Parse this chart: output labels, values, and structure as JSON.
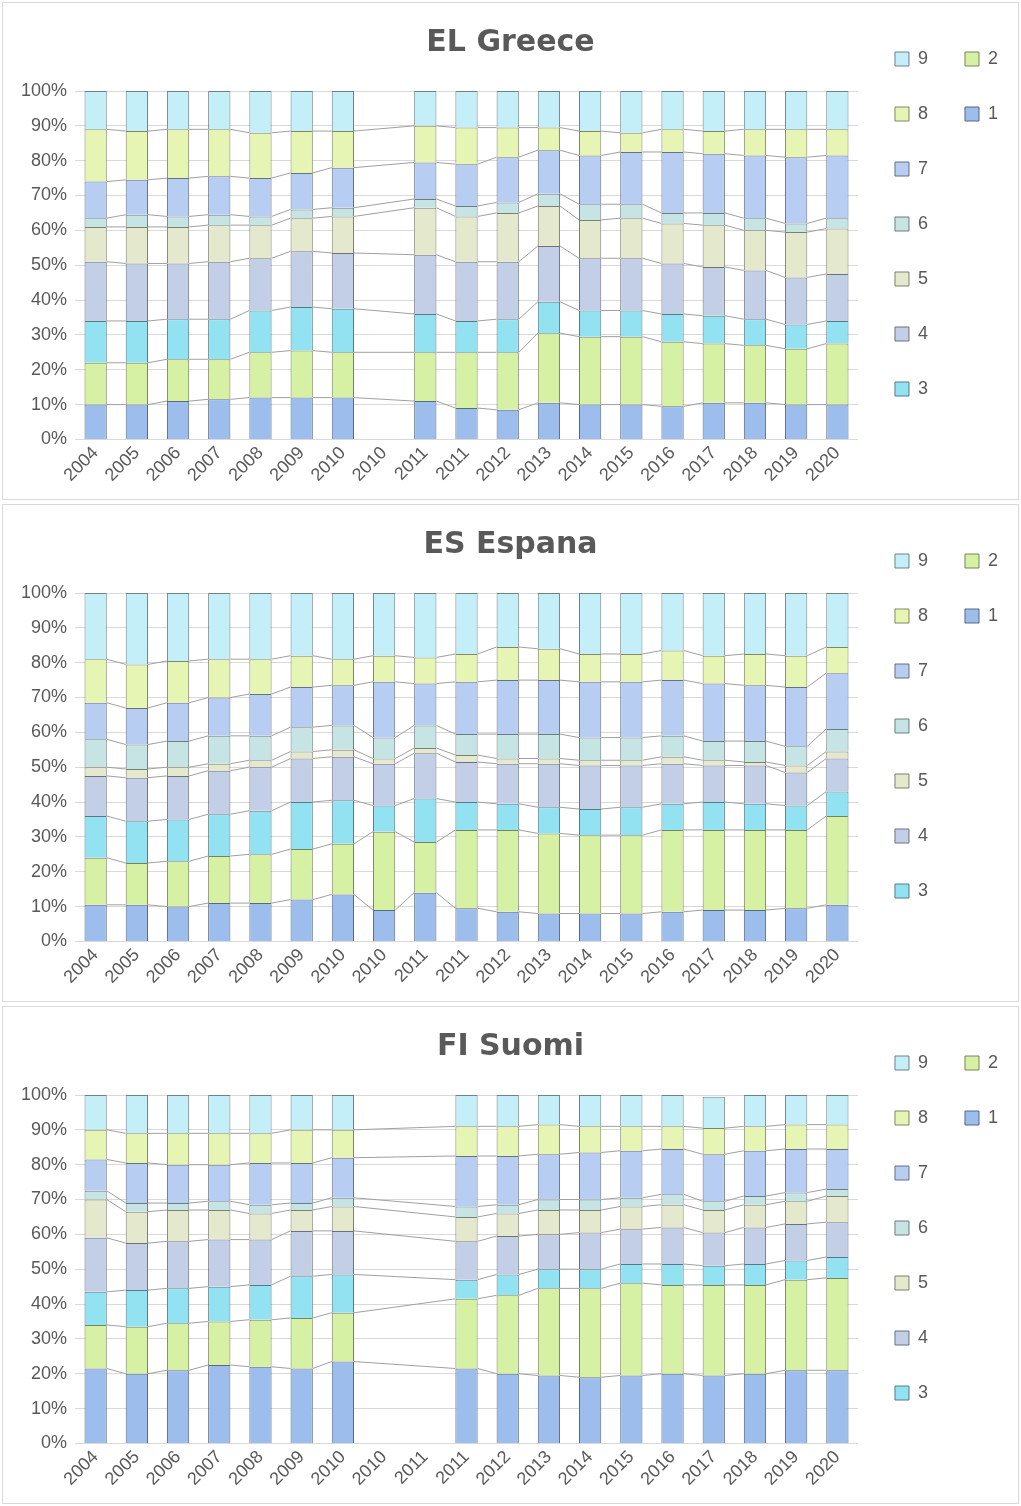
{
  "chart_data": [
    {
      "type": "bar",
      "title": "EL Greece",
      "stacked": true,
      "grid": "y",
      "legend": "right",
      "categories": [
        "2004",
        "2005",
        "2006",
        "2007",
        "2008",
        "2009",
        "2010",
        "2010",
        "2011",
        "2011",
        "2012",
        "2013",
        "2014",
        "2015",
        "2016",
        "2017",
        "2018",
        "2019",
        "2020"
      ],
      "ylim": [
        0,
        100
      ],
      "yticks": [
        {
          "value": 0,
          "label": "0%"
        },
        {
          "value": 10,
          "label": "10%"
        },
        {
          "value": 20,
          "label": "20%"
        },
        {
          "value": 30,
          "label": "30%"
        },
        {
          "value": 40,
          "label": "40%"
        },
        {
          "value": 50,
          "label": "50%"
        },
        {
          "value": 60,
          "label": "60%"
        },
        {
          "value": 70,
          "label": "70%"
        },
        {
          "value": 80,
          "label": "80%"
        },
        {
          "value": 90,
          "label": "90%"
        },
        {
          "value": 100,
          "label": "100%"
        }
      ],
      "series": [
        {
          "name": "1",
          "color": "#9dbdec",
          "values": [
            10,
            10,
            11,
            11.5,
            12,
            12,
            12,
            null,
            11,
            9,
            8.5,
            10.5,
            10,
            10,
            9.5,
            10.5,
            10.5,
            10,
            10
          ]
        },
        {
          "name": "2",
          "color": "#d6f0a4",
          "values": [
            12,
            12,
            12,
            11.5,
            13,
            13.5,
            13,
            null,
            14,
            16,
            16.5,
            20,
            19.5,
            19.5,
            18.5,
            17,
            16.5,
            16,
            17.5
          ]
        },
        {
          "name": "3",
          "color": "#93e2f2",
          "values": [
            12,
            12,
            11.5,
            11.5,
            12,
            12.5,
            12.5,
            null,
            11,
            9,
            9.5,
            9,
            7.5,
            7.5,
            8,
            8,
            7.5,
            7,
            6.5
          ]
        },
        {
          "name": "4",
          "color": "#c3cfe6",
          "values": [
            17,
            16.5,
            16,
            16.5,
            15,
            16,
            16,
            null,
            17,
            17,
            16.5,
            16,
            15,
            15,
            14.5,
            14,
            14,
            13.5,
            13.5
          ]
        },
        {
          "name": "5",
          "color": "#e4e8cc",
          "values": [
            10,
            10.5,
            10.5,
            10.5,
            9.5,
            9.5,
            10.5,
            null,
            13.5,
            13,
            14,
            11.5,
            11,
            11.5,
            11.5,
            12,
            11.5,
            13,
            13
          ]
        },
        {
          "name": "6",
          "color": "#c6e4e4",
          "values": [
            2.5,
            3.5,
            3,
            3,
            2.5,
            2.5,
            2.5,
            null,
            2.5,
            3,
            3,
            3.5,
            4.5,
            4,
            3,
            3.5,
            3.5,
            2.5,
            3
          ]
        },
        {
          "name": "7",
          "color": "#b7cdf2",
          "values": [
            10.5,
            10,
            11,
            11,
            11,
            10.5,
            11.5,
            null,
            10.5,
            12,
            13,
            12.5,
            14,
            15,
            17.5,
            17,
            18,
            19,
            18
          ]
        },
        {
          "name": "8",
          "color": "#e6f5b4",
          "values": [
            15,
            14,
            14,
            13.5,
            13,
            12,
            10.5,
            null,
            10.5,
            10.5,
            8.5,
            6.5,
            7,
            5.5,
            6.5,
            6.5,
            7.5,
            8,
            7.5
          ]
        },
        {
          "name": "9",
          "color": "#c4eef8",
          "values": [
            11,
            11.5,
            11,
            11,
            12,
            11.5,
            11.5,
            null,
            10,
            10.5,
            10.5,
            10.5,
            11.5,
            12,
            11,
            11.5,
            11,
            11,
            11
          ]
        }
      ]
    },
    {
      "type": "bar",
      "title": "ES Espana",
      "stacked": true,
      "grid": "y",
      "legend": "right",
      "categories": [
        "2004",
        "2005",
        "2006",
        "2007",
        "2008",
        "2009",
        "2010",
        "2010",
        "2011",
        "2011",
        "2012",
        "2013",
        "2014",
        "2015",
        "2016",
        "2017",
        "2018",
        "2019",
        "2020"
      ],
      "ylim": [
        0,
        100
      ],
      "yticks": [
        {
          "value": 0,
          "label": "0%"
        },
        {
          "value": 10,
          "label": "10%"
        },
        {
          "value": 20,
          "label": "20%"
        },
        {
          "value": 30,
          "label": "30%"
        },
        {
          "value": 40,
          "label": "40%"
        },
        {
          "value": 50,
          "label": "50%"
        },
        {
          "value": 60,
          "label": "60%"
        },
        {
          "value": 70,
          "label": "70%"
        },
        {
          "value": 80,
          "label": "80%"
        },
        {
          "value": 90,
          "label": "90%"
        },
        {
          "value": 100,
          "label": "100%"
        }
      ],
      "series": [
        {
          "name": "1",
          "color": "#9dbdec",
          "values": [
            10.5,
            10.5,
            10,
            11,
            11,
            12,
            13.5,
            9,
            14,
            9.5,
            8.5,
            8,
            8,
            8,
            8.5,
            9,
            9,
            9.5,
            10.5
          ]
        },
        {
          "name": "2",
          "color": "#d6f0a4",
          "values": [
            13.5,
            12,
            13,
            13.5,
            14,
            14.5,
            14.5,
            22.5,
            14.5,
            22.5,
            23.5,
            23,
            22.5,
            22.5,
            23.5,
            23,
            23,
            22.5,
            25.5
          ]
        },
        {
          "name": "3",
          "color": "#93e2f2",
          "values": [
            12,
            12,
            12,
            12,
            12.5,
            13.5,
            12.5,
            7.5,
            12.5,
            8,
            7.5,
            7.5,
            7.5,
            8,
            7.5,
            8,
            7.5,
            7,
            7
          ]
        },
        {
          "name": "4",
          "color": "#c3cfe6",
          "values": [
            11.5,
            12.5,
            12.5,
            12.5,
            12.5,
            12.5,
            12.5,
            12,
            13,
            11.5,
            11.5,
            12.5,
            12.5,
            12,
            11.5,
            10.5,
            11,
            9.5,
            9.5
          ]
        },
        {
          "name": "5",
          "color": "#e4e8cc",
          "values": [
            2.5,
            2.5,
            2.5,
            2,
            2,
            2,
            2,
            1.5,
            1.5,
            2,
            1.5,
            1.5,
            1.5,
            1.5,
            2,
            1.5,
            1,
            2,
            2
          ]
        },
        {
          "name": "6",
          "color": "#c6e4e4",
          "values": [
            8,
            7,
            7.5,
            8,
            7,
            7,
            7,
            6,
            6.5,
            6,
            7,
            7,
            6.5,
            6.5,
            6,
            5.5,
            6,
            5.5,
            6.5
          ]
        },
        {
          "name": "7",
          "color": "#b7cdf2",
          "values": [
            10.5,
            10.5,
            11,
            11,
            12,
            11.5,
            11.5,
            16,
            12,
            15,
            15.5,
            15.5,
            16,
            16,
            16,
            16.5,
            16,
            17,
            16
          ]
        },
        {
          "name": "8",
          "color": "#e6f5b4",
          "values": [
            12.5,
            12.5,
            12,
            11,
            10,
            9,
            7.5,
            7.5,
            7.5,
            8,
            9.5,
            9,
            8,
            8,
            8.5,
            8,
            9,
            9,
            7.5
          ]
        },
        {
          "name": "9",
          "color": "#c4eef8",
          "values": [
            19,
            20.5,
            19.5,
            19,
            19,
            18,
            19,
            18,
            18.5,
            17.5,
            15.5,
            16,
            17.5,
            17.5,
            16.5,
            18,
            17.5,
            18,
            15.5
          ]
        }
      ]
    },
    {
      "type": "bar",
      "title": "FI Suomi",
      "stacked": true,
      "grid": "y",
      "legend": "right",
      "categories": [
        "2004",
        "2005",
        "2006",
        "2007",
        "2008",
        "2009",
        "2010",
        "2010",
        "2011",
        "2011",
        "2012",
        "2013",
        "2014",
        "2015",
        "2016",
        "2017",
        "2018",
        "2019",
        "2020"
      ],
      "ylim": [
        0,
        100
      ],
      "yticks": [
        {
          "value": 0,
          "label": "0%"
        },
        {
          "value": 10,
          "label": "10%"
        },
        {
          "value": 20,
          "label": "20%"
        },
        {
          "value": 30,
          "label": "30%"
        },
        {
          "value": 40,
          "label": "40%"
        },
        {
          "value": 50,
          "label": "50%"
        },
        {
          "value": 60,
          "label": "60%"
        },
        {
          "value": 70,
          "label": "70%"
        },
        {
          "value": 80,
          "label": "80%"
        },
        {
          "value": 90,
          "label": "90%"
        },
        {
          "value": 100,
          "label": "100%"
        }
      ],
      "series": [
        {
          "name": "1",
          "color": "#9dbdec",
          "values": [
            21.5,
            20,
            21,
            22.5,
            22,
            21.5,
            23.5,
            null,
            null,
            21.5,
            20,
            19.5,
            19,
            19.5,
            20,
            19.5,
            20,
            21,
            21
          ]
        },
        {
          "name": "2",
          "color": "#d6f0a4",
          "values": [
            12.5,
            13.5,
            13.5,
            12.5,
            13.5,
            14.5,
            14,
            null,
            null,
            20,
            22.5,
            25,
            25.5,
            26.5,
            25.5,
            26,
            25.5,
            26,
            26.5
          ]
        },
        {
          "name": "3",
          "color": "#93e2f2",
          "values": [
            9.5,
            10.5,
            10,
            10,
            10,
            12,
            11,
            null,
            null,
            5.5,
            6,
            5.5,
            5.5,
            5.5,
            6,
            5.5,
            6,
            5.5,
            6
          ]
        },
        {
          "name": "4",
          "color": "#c3cfe6",
          "values": [
            15.5,
            13.5,
            13.5,
            13.5,
            13,
            13,
            12.5,
            null,
            null,
            11,
            11,
            10,
            10.5,
            10,
            10.5,
            9.5,
            10.5,
            10.5,
            10
          ]
        },
        {
          "name": "5",
          "color": "#e4e8cc",
          "values": [
            11,
            9,
            9,
            8.5,
            7.5,
            6,
            7,
            null,
            null,
            7,
            6.5,
            7,
            6.5,
            6.5,
            6.5,
            6.5,
            6.5,
            6.5,
            7.5
          ]
        },
        {
          "name": "6",
          "color": "#c6e4e4",
          "values": [
            2.5,
            2.5,
            2,
            2.5,
            2.5,
            2,
            2.5,
            null,
            null,
            3,
            2.5,
            3,
            3,
            2.5,
            3,
            2.5,
            2.5,
            2.5,
            2
          ]
        },
        {
          "name": "7",
          "color": "#b7cdf2",
          "values": [
            9,
            11.5,
            11,
            10.5,
            12,
            11.5,
            11.5,
            null,
            null,
            14.5,
            14,
            13,
            13.5,
            13.5,
            13,
            13.5,
            13,
            12.5,
            11.5
          ]
        },
        {
          "name": "8",
          "color": "#e6f5b4",
          "values": [
            8.5,
            8.5,
            9,
            9,
            8.5,
            9.5,
            8,
            null,
            null,
            8.5,
            8.5,
            8.5,
            7.5,
            7,
            6.5,
            7.5,
            7,
            7,
            7
          ]
        },
        {
          "name": "9",
          "color": "#c4eef8",
          "values": [
            10,
            11,
            11,
            11,
            11,
            10,
            10,
            null,
            null,
            9,
            9,
            8.5,
            9,
            9,
            9,
            9,
            9,
            8.5,
            8.5
          ]
        }
      ]
    }
  ]
}
